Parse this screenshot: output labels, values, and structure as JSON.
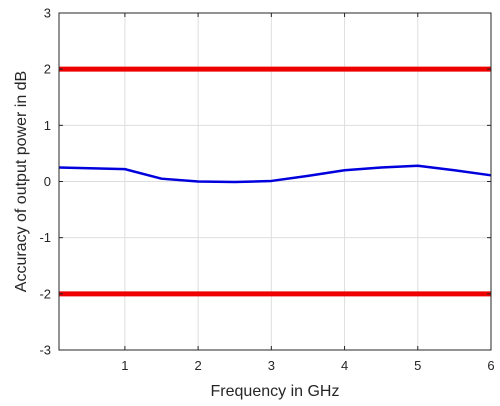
{
  "chart_data": {
    "type": "line",
    "title": "",
    "xlabel": "Frequency in GHz",
    "ylabel": "Accuracy of output power in dB",
    "xlim": [
      0.1,
      6
    ],
    "ylim": [
      -3,
      3
    ],
    "x_ticks": [
      1,
      2,
      3,
      4,
      5,
      6
    ],
    "y_ticks": [
      -3,
      -2,
      -1,
      0,
      1,
      2,
      3
    ],
    "x_tick_labels": [
      "1",
      "2",
      "3",
      "4",
      "5",
      "6"
    ],
    "y_tick_labels": [
      "-3",
      "-2",
      "-1",
      "0",
      "1",
      "2",
      "3"
    ],
    "grid": true,
    "series": [
      {
        "color": "#0000dd",
        "x": [
          0.1,
          1,
          1.5,
          2,
          2.5,
          3,
          3.5,
          4,
          4.5,
          5,
          5.5,
          6
        ],
        "y": [
          0.25,
          0.22,
          0.05,
          0.0,
          -0.01,
          0.01,
          0.1,
          0.2,
          0.25,
          0.28,
          0.2,
          0.11
        ]
      },
      {
        "color": "#ee0000",
        "x": [
          0.1,
          6
        ],
        "y": [
          2,
          2
        ]
      },
      {
        "color": "#ee0000",
        "x": [
          0.1,
          6
        ],
        "y": [
          -2,
          -2
        ]
      }
    ]
  }
}
